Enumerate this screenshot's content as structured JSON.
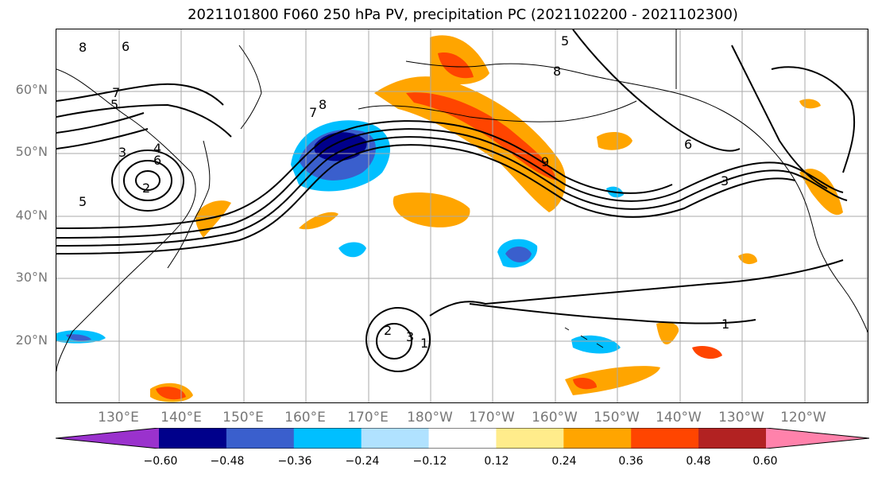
{
  "title": "2021101800 F060 250 hPa PV, precipitation PC (2021102200 - 2021102300)",
  "latitude_labels": [
    "60°N",
    "50°N",
    "40°N",
    "30°N",
    "20°N"
  ],
  "longitude_labels": [
    "130°E",
    "140°E",
    "150°E",
    "160°E",
    "170°E",
    "180°W",
    "170°W",
    "160°W",
    "150°W",
    "140°W",
    "130°W",
    "120°W"
  ],
  "colorbar": {
    "ticks": [
      "−0.60",
      "−0.48",
      "−0.36",
      "−0.24",
      "−0.12",
      "0.12",
      "0.24",
      "0.36",
      "0.48",
      "0.60"
    ],
    "colors": [
      "#9a32cd",
      "#00008b",
      "#3a5fcd",
      "#00bfff",
      "#b0e2ff",
      "#ffffff",
      "#ffec8b",
      "#ffa500",
      "#ff4500",
      "#b22222",
      "#ff82ab"
    ]
  },
  "contour_labels": [
    {
      "text": "8"
    },
    {
      "text": "6"
    },
    {
      "text": "7"
    },
    {
      "text": "5"
    },
    {
      "text": "3"
    },
    {
      "text": "4"
    },
    {
      "text": "6"
    },
    {
      "text": "2"
    },
    {
      "text": "5"
    },
    {
      "text": "7"
    },
    {
      "text": "8"
    },
    {
      "text": "5"
    },
    {
      "text": "8"
    },
    {
      "text": "9"
    },
    {
      "text": "6"
    },
    {
      "text": "3"
    },
    {
      "text": "1"
    },
    {
      "text": "2"
    },
    {
      "text": "3"
    },
    {
      "text": "1"
    }
  ]
}
